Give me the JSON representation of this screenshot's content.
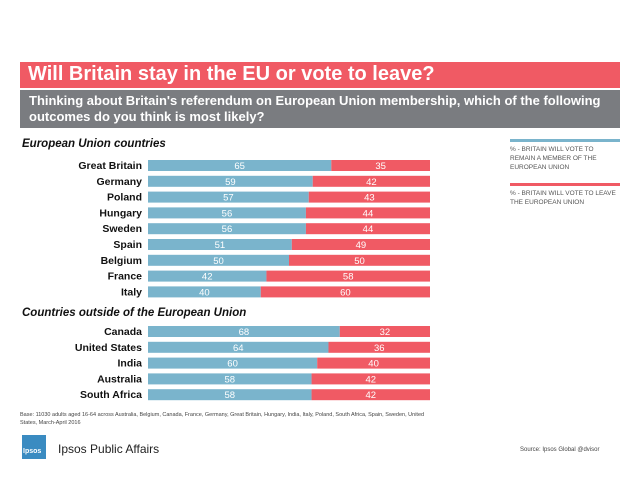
{
  "header": {
    "title": "Will Britain stay in the EU or vote to leave?",
    "subtitle": "Thinking about Britain's referendum on European Union membership, which of the following outcomes do you think is most likely?"
  },
  "legend": {
    "remain": "% - BRITAIN WILL VOTE TO REMAIN A MEMBER OF THE EUROPEAN UNION",
    "leave": "% - BRITAIN WILL VOTE TO LEAVE THE EUROPEAN UNION"
  },
  "footer": {
    "base_note": "Base: 11030 adults aged 16-64 across Australia, Belgium, Canada, France, Germany, Great Britain, Hungary, India, Italy, Poland, South Africa, Spain, Sweden, United States, March-April 2016",
    "source": "Source: Ipsos Global @dvisor",
    "brand": "Ipsos Public Affairs",
    "logo_text": "Ipsos"
  },
  "colors": {
    "remain": "#7ab4cc",
    "leave": "#f05a64",
    "title_bg": "#f05a64",
    "subtitle_bg": "#7a7c80"
  },
  "chart_data": [
    {
      "type": "bar",
      "stacked": true,
      "orientation": "horizontal",
      "title": "European Union countries",
      "categories": [
        "Great Britain",
        "Germany",
        "Poland",
        "Hungary",
        "Sweden",
        "Spain",
        "Belgium",
        "France",
        "Italy"
      ],
      "series": [
        {
          "name": "% - BRITAIN WILL VOTE TO REMAIN A MEMBER OF THE EUROPEAN UNION",
          "values": [
            65,
            59,
            57,
            56,
            56,
            51,
            50,
            42,
            40
          ]
        },
        {
          "name": "% - BRITAIN WILL VOTE TO LEAVE THE EUROPEAN UNION",
          "values": [
            35,
            42,
            43,
            44,
            44,
            49,
            50,
            58,
            60
          ]
        }
      ]
    },
    {
      "type": "bar",
      "stacked": true,
      "orientation": "horizontal",
      "title": "Countries outside of the European Union",
      "categories": [
        "Canada",
        "United States",
        "India",
        "Australia",
        "South Africa"
      ],
      "series": [
        {
          "name": "% - BRITAIN WILL VOTE TO REMAIN A MEMBER OF THE EUROPEAN UNION",
          "values": [
            68,
            64,
            60,
            58,
            58
          ]
        },
        {
          "name": "% - BRITAIN WILL VOTE TO LEAVE THE EUROPEAN UNION",
          "values": [
            32,
            36,
            40,
            42,
            42
          ]
        }
      ]
    }
  ]
}
